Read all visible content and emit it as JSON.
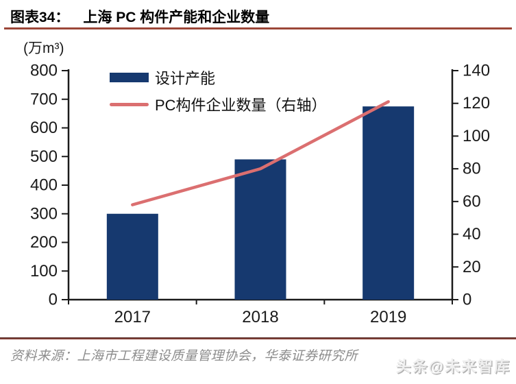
{
  "header": {
    "prefix": "图表34：",
    "title": "上海 PC 构件产能和企业数量"
  },
  "chart_data": {
    "type": "bar",
    "combo": "bar+line dual axis",
    "title": "上海 PC 构件产能和企业数量",
    "categories": [
      "2017",
      "2018",
      "2019"
    ],
    "series": [
      {
        "name": "设计产能",
        "type": "bar",
        "axis": "left",
        "color": "#16396F",
        "values": [
          300,
          490,
          675
        ]
      },
      {
        "name": "PC构件企业数量（右轴）",
        "type": "line",
        "axis": "right",
        "color": "#DB6F70",
        "values": [
          58,
          80,
          121
        ]
      }
    ],
    "left_axis": {
      "label": "(万m³)",
      "min": 0,
      "max": 800,
      "step": 100,
      "ticks": [
        0,
        100,
        200,
        300,
        400,
        500,
        600,
        700,
        800
      ]
    },
    "right_axis": {
      "min": 0,
      "max": 140,
      "step": 20,
      "ticks": [
        0,
        20,
        40,
        60,
        80,
        100,
        120,
        140
      ]
    },
    "grid": false,
    "legend_position": "inside-top-left"
  },
  "footer": {
    "source": "资料来源：上海市工程建设质量管理协会，华泰证券研究所"
  },
  "watermark": {
    "text": "头条@未来智库"
  },
  "colors": {
    "bar": "#16396F",
    "line": "#DB6F70",
    "title_rule": "#9C4638",
    "footer_rule": "#6E2F29",
    "axis": "#1A1A1A",
    "source_text": "#8C8C8C"
  }
}
